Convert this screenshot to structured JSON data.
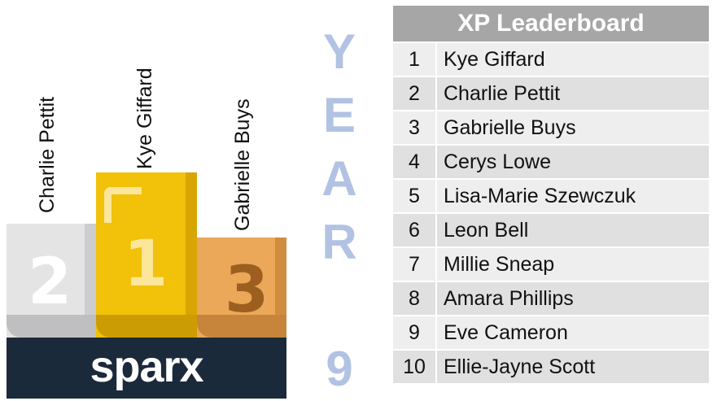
{
  "podium": {
    "second": {
      "name": "Charlie Pettit",
      "place": "2"
    },
    "first": {
      "name": "Kye Giffard",
      "place": "1"
    },
    "third": {
      "name": "Gabrielle Buys",
      "place": "3"
    },
    "logo_text": "sparx"
  },
  "year_label": {
    "letters": [
      "Y",
      "E",
      "A",
      "R"
    ],
    "number": "9"
  },
  "leaderboard": {
    "title": "XP Leaderboard",
    "rows": [
      {
        "rank": "1",
        "name": "Kye Giffard"
      },
      {
        "rank": "2",
        "name": "Charlie Pettit"
      },
      {
        "rank": "3",
        "name": "Gabrielle Buys"
      },
      {
        "rank": "4",
        "name": "Cerys Lowe"
      },
      {
        "rank": "5",
        "name": "Lisa-Marie Szewczuk"
      },
      {
        "rank": "6",
        "name": "Leon Bell"
      },
      {
        "rank": "7",
        "name": "Millie Sneap"
      },
      {
        "rank": "8",
        "name": "Amara Phillips"
      },
      {
        "rank": "9",
        "name": "Eve Cameron"
      },
      {
        "rank": "10",
        "name": "Ellie-Jayne Scott"
      }
    ]
  },
  "colors": {
    "gold": "#f2c109",
    "silver": "#e4e4e5",
    "bronze": "#eaa858",
    "navy": "#1b2a3a",
    "year_blue": "#b2c2e3",
    "header_gray": "#a6a6a6"
  }
}
